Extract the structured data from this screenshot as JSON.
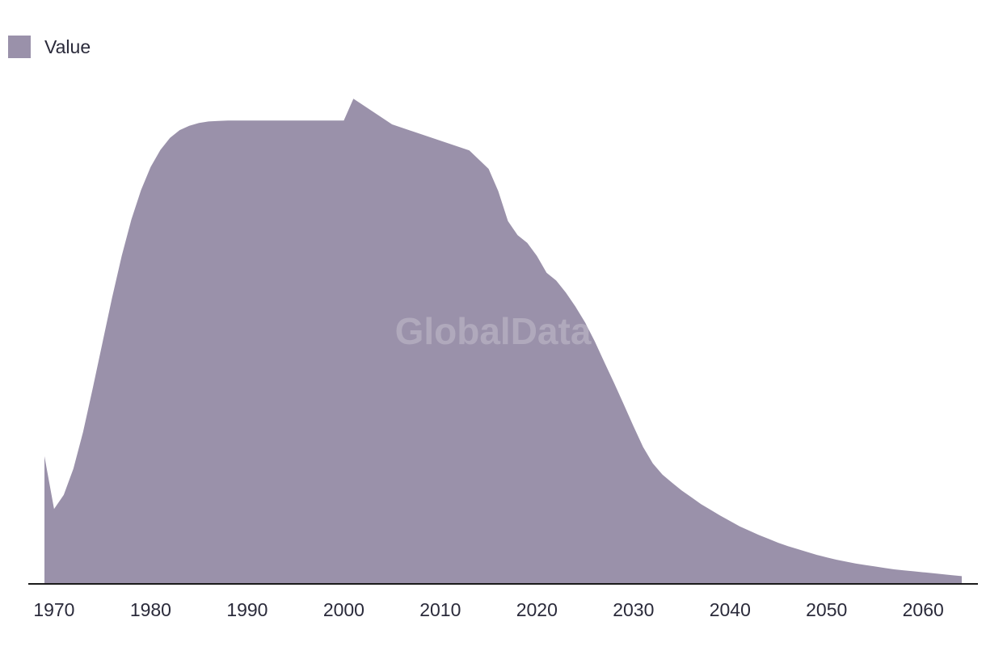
{
  "legend": {
    "label": "Value"
  },
  "watermark": "GlobalData",
  "colors": {
    "area": "#9a91aa",
    "axis": "#1a1a1a",
    "text": "#2a2a3a"
  },
  "chart_data": {
    "type": "area",
    "title": "",
    "xlabel": "",
    "ylabel": "",
    "xlim": [
      1969,
      2064
    ],
    "ylim": [
      0,
      100
    ],
    "grid": false,
    "legend_position": "top-left",
    "x_ticks": [
      "1970",
      "1980",
      "1990",
      "2000",
      "2010",
      "2020",
      "2030",
      "2040",
      "2050",
      "2060"
    ],
    "series": [
      {
        "name": "Value",
        "x": [
          1969,
          1970,
          1971,
          1972,
          1973,
          1974,
          1975,
          1976,
          1977,
          1978,
          1979,
          1980,
          1981,
          1982,
          1983,
          1984,
          1985,
          1986,
          1987,
          1988,
          1989,
          1990,
          1995,
          2000,
          2001,
          2005,
          2013,
          2015,
          2016,
          2017,
          2018,
          2019,
          2020,
          2021,
          2022,
          2023,
          2024,
          2025,
          2026,
          2027,
          2028,
          2029,
          2030,
          2031,
          2032,
          2033,
          2034,
          2035,
          2036,
          2037,
          2038,
          2039,
          2040,
          2041,
          2042,
          2043,
          2044,
          2045,
          2046,
          2047,
          2048,
          2049,
          2050,
          2051,
          2052,
          2053,
          2054,
          2055,
          2056,
          2057,
          2058,
          2059,
          2060,
          2061,
          2062,
          2063,
          2064
        ],
        "values": [
          26.4,
          15.5,
          18.4,
          23.8,
          31.4,
          40.4,
          49.8,
          59.1,
          67.8,
          75.3,
          81.4,
          86.2,
          89.7,
          92.2,
          93.8,
          94.7,
          95.3,
          95.6,
          95.7,
          95.8,
          95.8,
          95.8,
          95.8,
          95.8,
          100.3,
          95.0,
          89.6,
          85.8,
          81.2,
          75.0,
          72.1,
          70.5,
          67.8,
          64.3,
          62.7,
          60.2,
          57.3,
          54.0,
          50.1,
          45.8,
          41.5,
          37.1,
          32.6,
          28.3,
          24.9,
          22.6,
          20.9,
          19.3,
          17.9,
          16.5,
          15.3,
          14.1,
          13.0,
          11.9,
          11.0,
          10.1,
          9.3,
          8.5,
          7.8,
          7.2,
          6.6,
          6.0,
          5.5,
          5.0,
          4.6,
          4.2,
          3.9,
          3.6,
          3.3,
          3.0,
          2.8,
          2.6,
          2.4,
          2.2,
          2.0,
          1.8,
          1.6
        ]
      }
    ]
  }
}
